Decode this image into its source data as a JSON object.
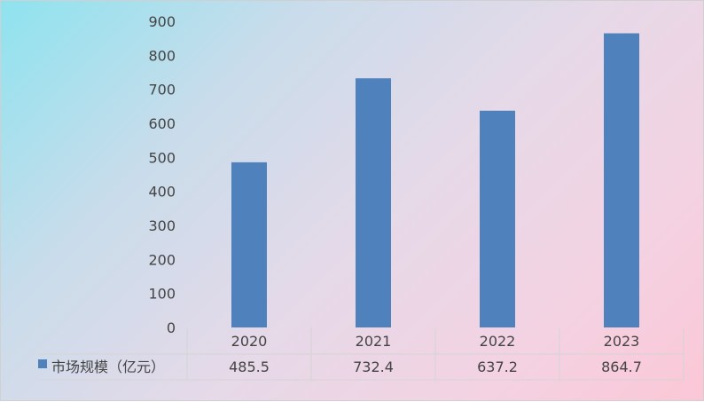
{
  "chart_data": {
    "type": "bar",
    "categories": [
      "2020",
      "2021",
      "2022",
      "2023"
    ],
    "series": [
      {
        "name": "市场规模（亿元）",
        "values": [
          485.5,
          732.4,
          637.2,
          864.7
        ],
        "color": "#4f81bd"
      }
    ],
    "data_labels": [
      "485.5",
      "732.4",
      "637.2",
      "864.7"
    ],
    "yticks": [
      "0",
      "100",
      "200",
      "300",
      "400",
      "500",
      "600",
      "700",
      "800",
      "900"
    ],
    "ylim": [
      0,
      900
    ],
    "grid": false,
    "legend": "data-table-left"
  }
}
